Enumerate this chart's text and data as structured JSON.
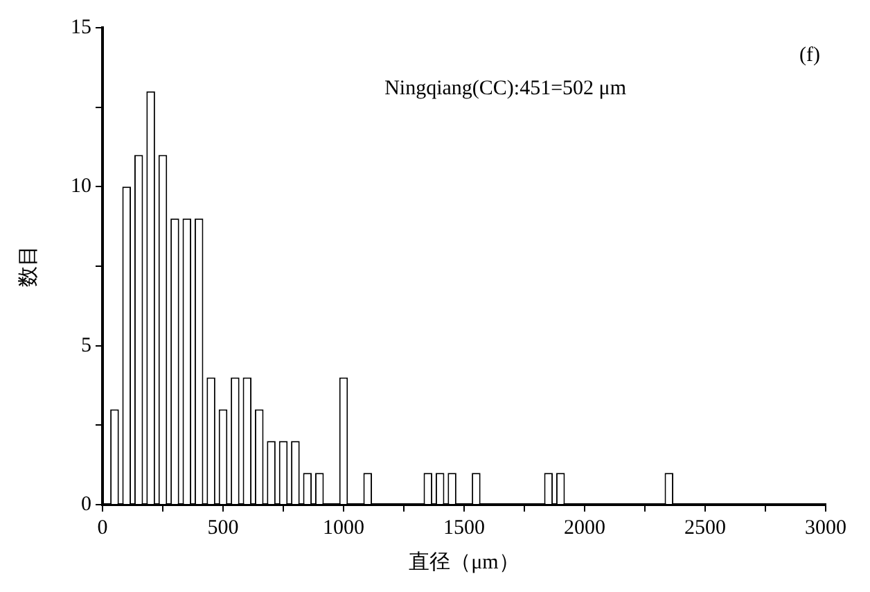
{
  "chart_data": {
    "type": "histogram",
    "xlabel": "直径（μm）",
    "ylabel": "数目",
    "annotations": [
      "Ningqiang(CC):451=502 μm",
      "(f)"
    ],
    "bins": [
      25,
      75,
      125,
      175,
      225,
      275,
      325,
      375,
      425,
      475,
      525,
      575,
      625,
      675,
      725,
      775,
      825,
      875,
      925,
      975,
      1025,
      1075,
      1125,
      1175,
      1225,
      1275,
      1325,
      1375,
      1425,
      1475,
      1525,
      1575,
      1625,
      1675,
      1725,
      1775,
      1825,
      1875,
      1925,
      1975,
      2025,
      2075,
      2125,
      2175,
      2225,
      2275,
      2325,
      2375
    ],
    "values": [
      3,
      10,
      11,
      13,
      11,
      9,
      9,
      9,
      4,
      3,
      4,
      4,
      3,
      2,
      2,
      2,
      1,
      1,
      0,
      4,
      0,
      1,
      0,
      0,
      0,
      0,
      1,
      1,
      1,
      0,
      1,
      0,
      0,
      0,
      0,
      0,
      1,
      1,
      0,
      0,
      0,
      0,
      0,
      0,
      0,
      0,
      1
    ],
    "color": "#ffffff",
    "xlim": [
      0,
      3000
    ],
    "xticks": [
      0,
      {
        "value": 250,
        "label": null
      },
      500,
      {
        "value": 750,
        "label": null
      },
      1000,
      {
        "value": 1250,
        "label": null
      },
      1500,
      {
        "value": 1750,
        "label": null
      },
      2000,
      {
        "value": 2250,
        "label": null
      },
      2500,
      {
        "value": 2750,
        "label": null
      },
      3000
    ],
    "ylim": [
      0,
      15
    ],
    "yticks": [
      0,
      {
        "value": 2.5,
        "label": null
      },
      5,
      {
        "value": 7.5,
        "label": null
      },
      10,
      {
        "value": 12.5,
        "label": null
      },
      15
    ],
    "grid": false,
    "legend": false
  }
}
